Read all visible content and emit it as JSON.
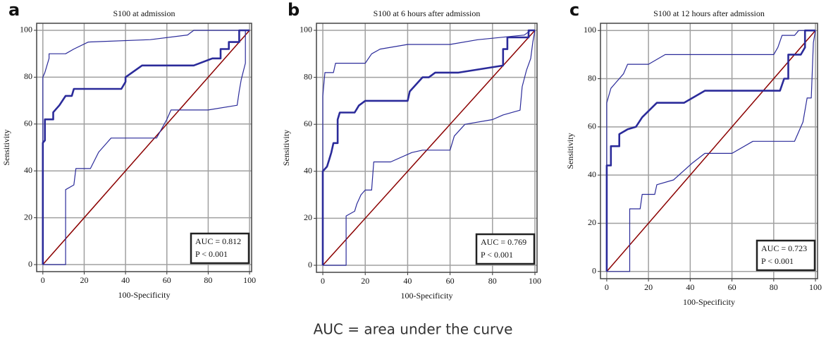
{
  "footnote": "AUC = area under the curve",
  "chart_data": [
    {
      "type": "line",
      "panel_label": "a",
      "title": "S100 at admission",
      "x_label": "100-Specificity",
      "y_label": "Sensitivity",
      "annotations": [
        "AUC = 0.812",
        "P < 0.001"
      ],
      "xlim": [
        -3,
        101
      ],
      "ylim": [
        -3,
        103
      ],
      "xticks": [
        0,
        20,
        40,
        60,
        80,
        100
      ],
      "yticks": [
        0,
        20,
        40,
        60,
        80,
        100
      ],
      "grid": true,
      "series": [
        {
          "color": "#8b0000",
          "width": 1.5,
          "x": [
            0,
            100
          ],
          "values": [
            0,
            100
          ]
        },
        {
          "color": "#2b2b9a",
          "width": 1.2,
          "x": [
            0,
            0,
            1,
            3,
            3,
            11,
            15,
            22,
            52,
            70,
            73,
            100
          ],
          "values": [
            0,
            80,
            82,
            88,
            90,
            90,
            92,
            95,
            96,
            98,
            100,
            100
          ]
        },
        {
          "color": "#2b2b9a",
          "width": 1.2,
          "x": [
            0,
            11,
            11,
            15,
            16,
            23,
            27,
            31,
            33,
            55,
            60,
            62,
            80,
            94,
            95,
            96,
            98,
            98,
            100
          ],
          "values": [
            0,
            0,
            32,
            34,
            41,
            41,
            48,
            52,
            54,
            54,
            62,
            66,
            66,
            68,
            74,
            79,
            86,
            100,
            100
          ]
        },
        {
          "color": "#2b2b9a",
          "width": 2.6,
          "x": [
            0,
            0,
            1,
            1,
            5,
            5,
            8,
            11,
            14,
            15,
            38,
            40,
            40,
            48,
            73,
            82,
            86,
            86,
            90,
            90,
            95,
            95,
            100
          ],
          "values": [
            0,
            52,
            53,
            62,
            62,
            65,
            68,
            72,
            72,
            75,
            75,
            78,
            80,
            85,
            85,
            88,
            88,
            92,
            92,
            95,
            95,
            100,
            100
          ]
        }
      ]
    },
    {
      "type": "line",
      "panel_label": "b",
      "title": "S100 at 6 hours after admission",
      "x_label": "100-Specificity",
      "y_label": "Sensitivity",
      "annotations": [
        "AUC = 0.769",
        "P < 0.001"
      ],
      "xlim": [
        -3,
        101
      ],
      "ylim": [
        -3,
        103
      ],
      "xticks": [
        0,
        20,
        40,
        60,
        80,
        100
      ],
      "yticks": [
        0,
        20,
        40,
        60,
        80,
        100
      ],
      "grid": true,
      "series": [
        {
          "color": "#8b0000",
          "width": 1.5,
          "x": [
            0,
            100
          ],
          "values": [
            0,
            100
          ]
        },
        {
          "color": "#2b2b9a",
          "width": 1.2,
          "x": [
            0,
            0,
            1,
            5,
            6,
            20,
            23,
            27,
            40,
            60,
            73,
            95,
            98,
            100
          ],
          "values": [
            0,
            72,
            82,
            82,
            86,
            86,
            90,
            92,
            94,
            94,
            96,
            98,
            100,
            100
          ]
        },
        {
          "color": "#2b2b9a",
          "width": 1.2,
          "x": [
            0,
            11,
            11,
            15,
            16,
            18,
            20,
            23,
            24,
            32,
            42,
            47,
            60,
            62,
            67,
            80,
            85,
            93,
            94,
            96,
            98,
            99,
            100
          ],
          "values": [
            0,
            0,
            21,
            23,
            26,
            30,
            32,
            32,
            44,
            44,
            48,
            49,
            49,
            55,
            60,
            62,
            64,
            66,
            76,
            83,
            88,
            95,
            100
          ]
        },
        {
          "color": "#2b2b9a",
          "width": 2.6,
          "x": [
            0,
            0,
            2,
            3,
            4,
            5,
            7,
            7,
            8,
            15,
            17,
            20,
            40,
            41,
            47,
            50,
            53,
            64,
            85,
            85,
            87,
            87,
            97,
            97,
            100
          ],
          "values": [
            0,
            40,
            42,
            45,
            48,
            52,
            52,
            62,
            65,
            65,
            68,
            70,
            70,
            74,
            80,
            80,
            82,
            82,
            85,
            92,
            92,
            97,
            97,
            100,
            100
          ]
        }
      ]
    },
    {
      "type": "line",
      "panel_label": "c",
      "title": "S100 at 12 hours after admission",
      "x_label": "100-Specificity",
      "y_label": "Sensitivity",
      "annotations": [
        "AUC = 0.723",
        "P < 0.001"
      ],
      "xlim": [
        -3,
        101
      ],
      "ylim": [
        -3,
        103
      ],
      "xticks": [
        0,
        20,
        40,
        60,
        80,
        100
      ],
      "yticks": [
        0,
        20,
        40,
        60,
        80,
        100
      ],
      "grid": true,
      "series": [
        {
          "color": "#8b0000",
          "width": 1.5,
          "x": [
            0,
            100
          ],
          "values": [
            0,
            100
          ]
        },
        {
          "color": "#2b2b9a",
          "width": 1.2,
          "x": [
            0,
            0,
            2,
            4,
            8,
            10,
            20,
            28,
            80,
            82,
            84,
            90,
            92,
            100
          ],
          "values": [
            0,
            70,
            76,
            78,
            82,
            86,
            86,
            90,
            90,
            93,
            98,
            98,
            100,
            100
          ]
        },
        {
          "color": "#2b2b9a",
          "width": 1.2,
          "x": [
            0,
            11,
            11,
            16,
            17,
            23,
            24,
            32,
            41,
            47,
            60,
            70,
            90,
            94,
            96,
            98,
            99,
            100
          ],
          "values": [
            0,
            0,
            26,
            26,
            32,
            32,
            36,
            38,
            45,
            49,
            49,
            54,
            54,
            62,
            72,
            72,
            95,
            100
          ]
        },
        {
          "color": "#2b2b9a",
          "width": 2.6,
          "x": [
            0,
            0,
            2,
            2,
            6,
            6,
            10,
            14,
            17,
            24,
            37,
            47,
            83,
            85,
            87,
            87,
            93,
            95,
            95,
            100
          ],
          "values": [
            0,
            44,
            44,
            52,
            52,
            57,
            59,
            60,
            64,
            70,
            70,
            75,
            75,
            80,
            80,
            90,
            90,
            93,
            100,
            100
          ]
        }
      ]
    }
  ]
}
